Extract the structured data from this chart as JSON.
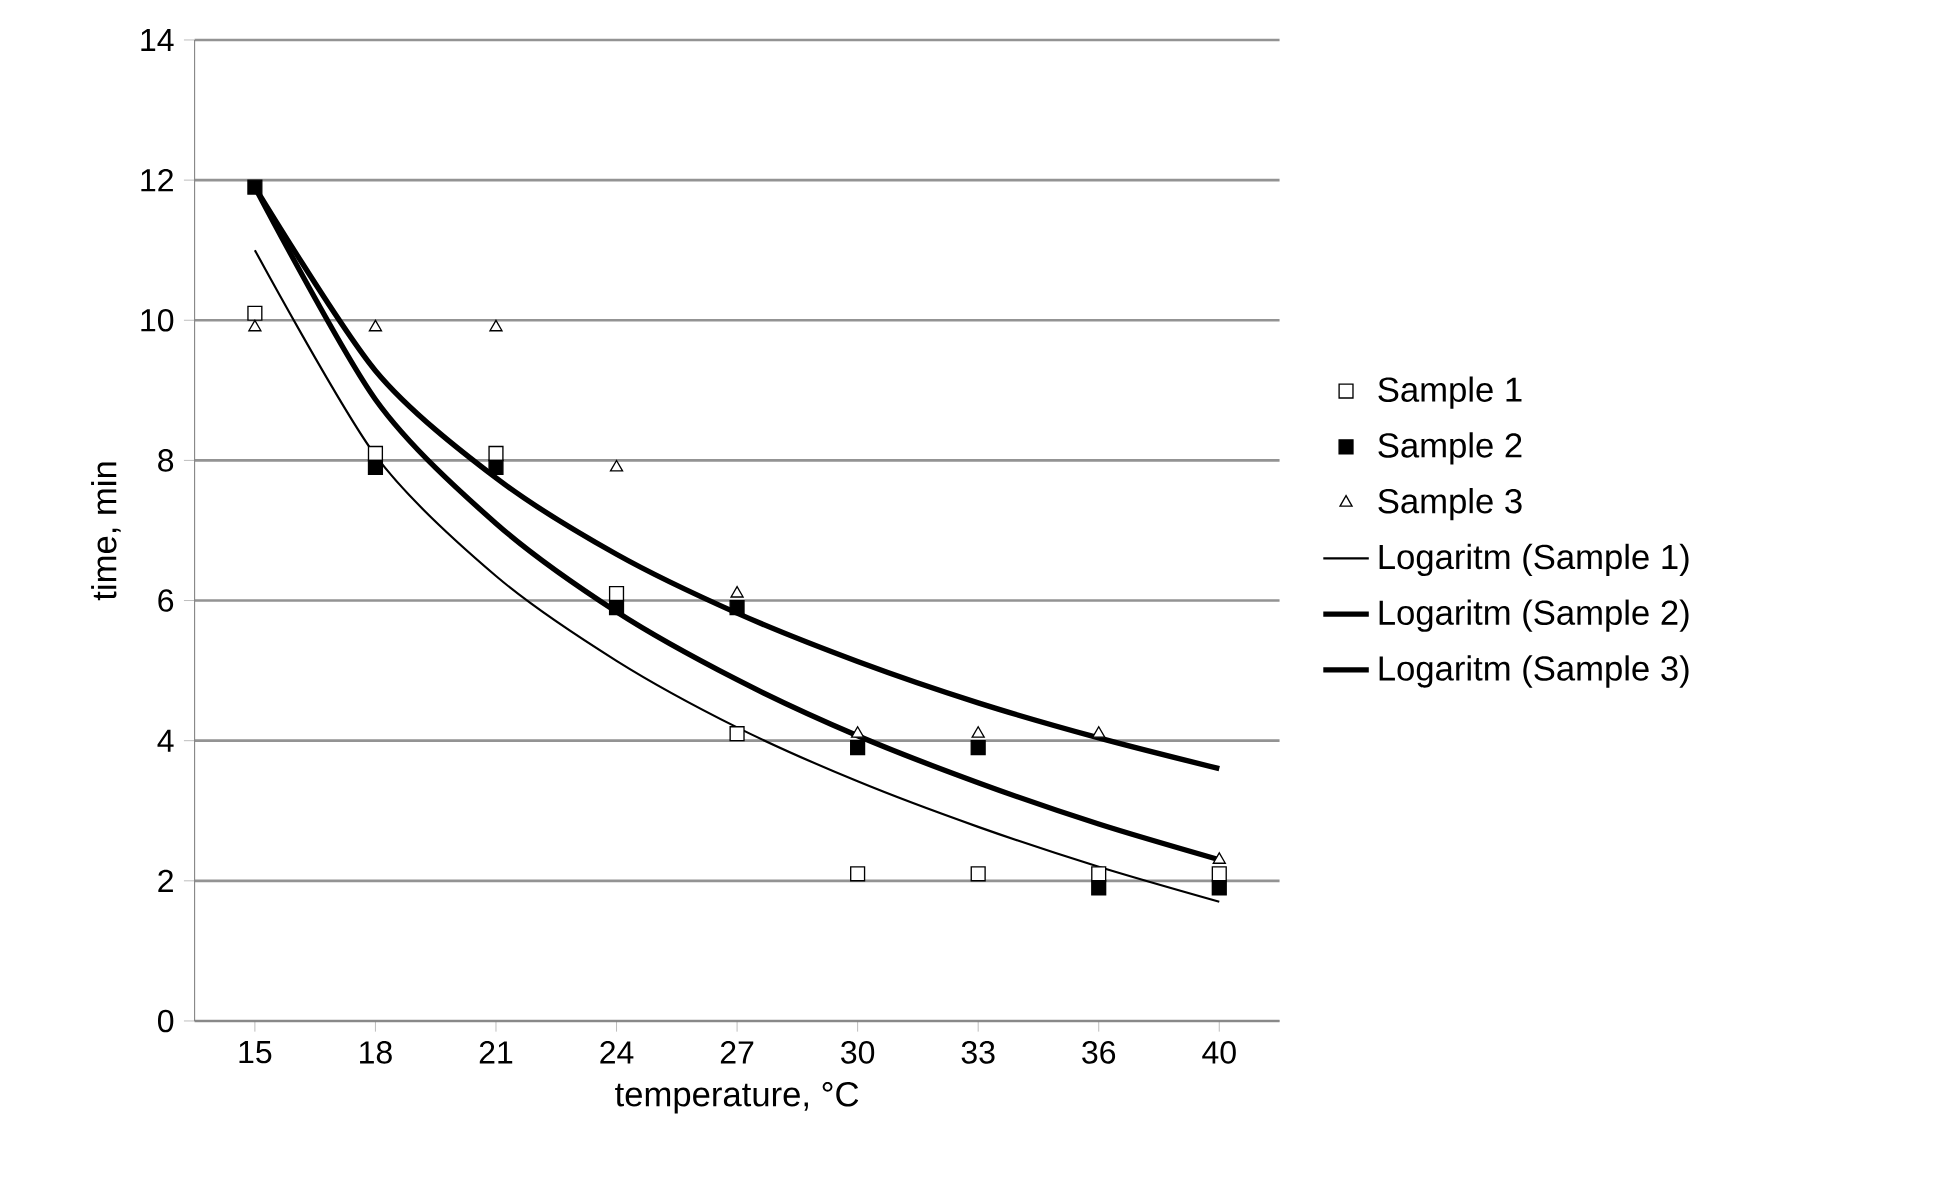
{
  "chart_data": {
    "type": "scatter",
    "xlabel": "temperature, °C",
    "ylabel": "time, min",
    "categories": [
      "15",
      "18",
      "21",
      "24",
      "27",
      "30",
      "33",
      "36",
      "40"
    ],
    "ylim": [
      0,
      14
    ],
    "yticks": [
      0,
      2,
      4,
      6,
      8,
      10,
      12,
      14
    ],
    "grid": "y",
    "legend": "right",
    "series": [
      {
        "name": "Sample 1",
        "marker": "square",
        "color": "#ffffff",
        "values": [
          10.1,
          8.1,
          8.1,
          6.1,
          4.1,
          2.1,
          2.1,
          2.1,
          2.1
        ]
      },
      {
        "name": "Sample 2",
        "marker": "square",
        "color": "#000000",
        "values": [
          11.9,
          7.9,
          7.9,
          5.9,
          5.9,
          3.9,
          3.9,
          1.9,
          1.9
        ]
      },
      {
        "name": "Sample 3",
        "marker": "triangle",
        "color": "#ffffff",
        "values": [
          9.9,
          9.9,
          9.9,
          7.9,
          6.1,
          4.1,
          4.1,
          4.1,
          2.3
        ]
      },
      {
        "name": "Logaritm (Sample 1)",
        "type": "line",
        "marker": "none",
        "color": "#000000",
        "values": [
          11.0,
          8.07,
          6.35,
          5.14,
          4.19,
          3.42,
          2.77,
          2.2,
          1.7
        ]
      },
      {
        "name": "Logaritm (Sample 2)",
        "type": "line",
        "marker": "none",
        "color": "#000000",
        "values": [
          11.9,
          8.87,
          7.1,
          5.84,
          4.87,
          4.07,
          3.4,
          2.81,
          2.3
        ]
      },
      {
        "name": "Logaritm (Sample 3)",
        "type": "line",
        "marker": "none",
        "color": "#000000",
        "values": [
          11.9,
          9.28,
          7.75,
          6.66,
          5.82,
          5.13,
          4.54,
          4.04,
          3.6
        ]
      }
    ]
  }
}
